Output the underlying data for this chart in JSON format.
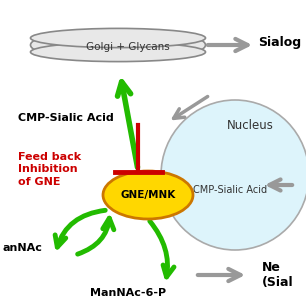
{
  "bg_color": "#ffffff",
  "golgi_color": "#e8e8e8",
  "golgi_edge": "#888888",
  "golgi_label": "Golgi + Glycans",
  "nucleus_color": "#ddf4fb",
  "nucleus_edge": "#aaaaaa",
  "nucleus_label": "Nucleus",
  "gne_color": "#ffd700",
  "gne_edge": "#cc7700",
  "gne_label": "GNE/MNK",
  "cmp_left_label": "CMP-Sialic Acid",
  "cmp_nucleus_label": "CMP-Sialic Acid",
  "feedback_label": "Feed back\nInhibition\nof GNE",
  "mannac_label": "anNAc",
  "mannac6p_label": "ManNAc-6-P",
  "sialog_label": "Sialog",
  "ne_label": "Ne\n(Sial",
  "green": "#22bb00",
  "red": "#cc0000",
  "gray_arrow": "#999999",
  "gray_text": "#555555"
}
